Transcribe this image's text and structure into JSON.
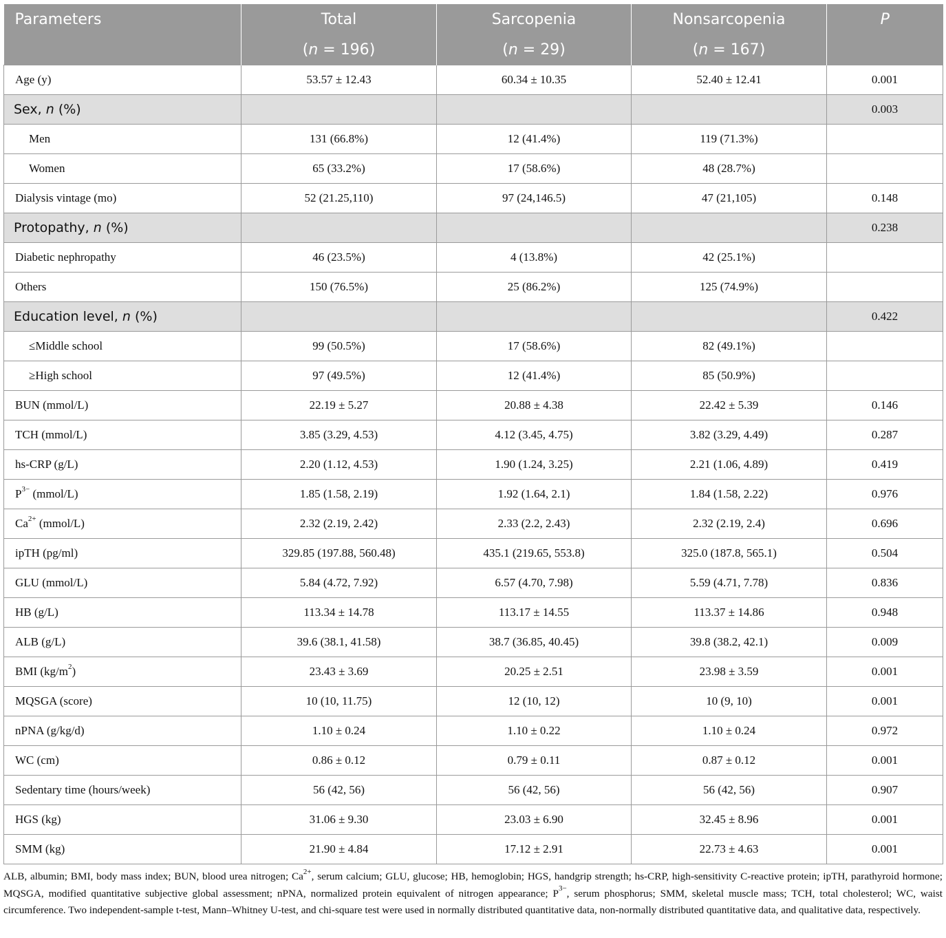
{
  "header": {
    "parameters": "Parameters",
    "total": "Total",
    "sarcopenia": "Sarcopenia",
    "nonsarcopenia": "Nonsarcopenia",
    "p": "P",
    "total_n": "196",
    "sarcopenia_n": "29",
    "nonsarcopenia_n": "167",
    "n_symbol": "n",
    "n_equals": " = "
  },
  "rows": [
    {
      "name": "Age (y)",
      "total": "53.57 ± 12.43",
      "sarcopenia": "60.34 ± 10.35",
      "nonsarcopenia": "52.40 ± 12.41",
      "p": "0.001"
    },
    {
      "name": "Sex, ",
      "name_em": "n",
      "name_tail": " (%)",
      "total": "",
      "sarcopenia": "",
      "nonsarcopenia": "",
      "p": "0.003"
    },
    {
      "name": "Men",
      "total": "131 (66.8%)",
      "sarcopenia": "12 (41.4%)",
      "nonsarcopenia": "119 (71.3%)",
      "p": ""
    },
    {
      "name": "Women",
      "total": "65 (33.2%)",
      "sarcopenia": "17 (58.6%)",
      "nonsarcopenia": "48 (28.7%)",
      "p": ""
    },
    {
      "name": "Dialysis vintage (mo)",
      "total": "52 (21.25,110)",
      "sarcopenia": "97 (24,146.5)",
      "nonsarcopenia": "47 (21,105)",
      "p": "0.148"
    },
    {
      "name": "Protopathy, ",
      "name_em": "n",
      "name_tail": " (%)",
      "total": "",
      "sarcopenia": "",
      "nonsarcopenia": "",
      "p": "0.238"
    },
    {
      "name": "Diabetic nephropathy",
      "total": "46 (23.5%)",
      "sarcopenia": "4 (13.8%)",
      "nonsarcopenia": "42 (25.1%)",
      "p": ""
    },
    {
      "name": "Others",
      "total": "150 (76.5%)",
      "sarcopenia": "25 (86.2%)",
      "nonsarcopenia": "125 (74.9%)",
      "p": ""
    },
    {
      "name": "Education level, ",
      "name_em": "n",
      "name_tail": " (%)",
      "total": "",
      "sarcopenia": "",
      "nonsarcopenia": "",
      "p": "0.422"
    },
    {
      "name": "≤Middle school",
      "total": "99 (50.5%)",
      "sarcopenia": "17 (58.6%)",
      "nonsarcopenia": "82 (49.1%)",
      "p": ""
    },
    {
      "name": "≥High school",
      "total": "97 (49.5%)",
      "sarcopenia": "12 (41.4%)",
      "nonsarcopenia": "85 (50.9%)",
      "p": ""
    },
    {
      "name": "BUN (mmol/L)",
      "total": "22.19 ± 5.27",
      "sarcopenia": "20.88 ± 4.38",
      "nonsarcopenia": "22.42 ± 5.39",
      "p": "0.146"
    },
    {
      "name": "TCH (mmol/L)",
      "total": "3.85 (3.29, 4.53)",
      "sarcopenia": "4.12 (3.45, 4.75)",
      "nonsarcopenia": "3.82 (3.29, 4.49)",
      "p": "0.287"
    },
    {
      "name": "hs-CRP (g/L)",
      "total": "2.20 (1.12, 4.53)",
      "sarcopenia": "1.90 (1.24, 3.25)",
      "nonsarcopenia": "2.21 (1.06, 4.89)",
      "p": "0.419"
    },
    {
      "name": "P",
      "name_sup": "3−",
      "name_tail": " (mmol/L)",
      "total": "1.85 (1.58, 2.19)",
      "sarcopenia": "1.92 (1.64, 2.1)",
      "nonsarcopenia": "1.84 (1.58, 2.22)",
      "p": "0.976"
    },
    {
      "name": "Ca",
      "name_sup": "2+",
      "name_tail": " (mmol/L)",
      "total": "2.32 (2.19, 2.42)",
      "sarcopenia": "2.33 (2.2, 2.43)",
      "nonsarcopenia": "2.32 (2.19, 2.4)",
      "p": "0.696"
    },
    {
      "name": "ipTH (pg/ml)",
      "total": "329.85 (197.88, 560.48)",
      "sarcopenia": "435.1 (219.65, 553.8)",
      "nonsarcopenia": "325.0 (187.8, 565.1)",
      "p": "0.504"
    },
    {
      "name": "GLU (mmol/L)",
      "total": "5.84 (4.72, 7.92)",
      "sarcopenia": "6.57 (4.70, 7.98)",
      "nonsarcopenia": "5.59 (4.71, 7.78)",
      "p": "0.836"
    },
    {
      "name": "HB (g/L)",
      "total": "113.34 ± 14.78",
      "sarcopenia": "113.17 ± 14.55",
      "nonsarcopenia": "113.37 ± 14.86",
      "p": "0.948"
    },
    {
      "name": "ALB (g/L)",
      "total": "39.6 (38.1, 41.58)",
      "sarcopenia": "38.7 (36.85, 40.45)",
      "nonsarcopenia": "39.8 (38.2, 42.1)",
      "p": "0.009"
    },
    {
      "name": "BMI (kg/m",
      "name_sup": "2",
      "name_tail": ")",
      "total": "23.43 ± 3.69",
      "sarcopenia": "20.25 ± 2.51",
      "nonsarcopenia": "23.98 ± 3.59",
      "p": "0.001"
    },
    {
      "name": "MQSGA (score)",
      "total": "10 (10, 11.75)",
      "sarcopenia": "12 (10, 12)",
      "nonsarcopenia": "10 (9, 10)",
      "p": "0.001"
    },
    {
      "name": "nPNA (g/kg/d)",
      "total": "1.10 ± 0.24",
      "sarcopenia": "1.10 ± 0.22",
      "nonsarcopenia": "1.10 ± 0.24",
      "p": "0.972"
    },
    {
      "name": "WC (cm)",
      "total": "0.86 ± 0.12",
      "sarcopenia": "0.79 ± 0.11",
      "nonsarcopenia": "0.87 ± 0.12",
      "p": "0.001"
    },
    {
      "name": "Sedentary time (hours/week)",
      "total": "56 (42, 56)",
      "sarcopenia": "56 (42, 56)",
      "nonsarcopenia": "56 (42, 56)",
      "p": "0.907"
    },
    {
      "name": "HGS (kg)",
      "total": "31.06 ± 9.30",
      "sarcopenia": "23.03 ± 6.90",
      "nonsarcopenia": "32.45 ± 8.96",
      "p": "0.001"
    },
    {
      "name": "SMM (kg)",
      "total": "21.90 ± 4.84",
      "sarcopenia": "17.12 ± 2.91",
      "nonsarcopenia": "22.73 ± 4.63",
      "p": "0.001"
    }
  ],
  "footnote": {
    "part1": "ALB, albumin; BMI, body mass index; BUN, blood urea nitrogen; Ca",
    "sup1": "2+",
    "part2": ", serum calcium; GLU, glucose; HB, hemoglobin; HGS, handgrip strength; hs-CRP, high-sensitivity C-reactive protein; ipTH, parathyroid hormone; MQSGA, modified quantitative subjective global assessment; nPNA, normalized protein equivalent of nitrogen appearance; P",
    "sup2": "3−",
    "part3": ", serum phosphorus; SMM, skeletal muscle mass; TCH, total cholesterol; WC, waist circumference. Two independent-sample t-test, Mann–Whitney U-test, and chi-square test were used in normally distributed quantitative data, non-normally distributed quantitative data, and qualitative data, respectively."
  }
}
